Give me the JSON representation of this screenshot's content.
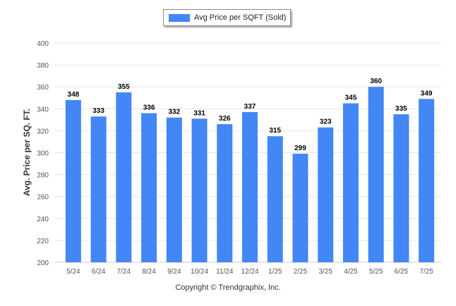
{
  "chart_data": {
    "type": "bar",
    "categories": [
      "5/24",
      "6/24",
      "7/24",
      "8/24",
      "9/24",
      "10/24",
      "11/24",
      "12/24",
      "1/25",
      "2/25",
      "3/25",
      "4/25",
      "5/25",
      "6/25",
      "7/25"
    ],
    "series": [
      {
        "name": "Avg Price per SQFT (Sold)",
        "values": [
          348,
          333,
          355,
          336,
          332,
          331,
          326,
          337,
          315,
          299,
          323,
          345,
          360,
          335,
          349
        ]
      }
    ],
    "ylabel": "Avg. Price per SQ. FT.",
    "xlabel": "",
    "ylim": [
      200,
      400
    ],
    "yticks": [
      200,
      220,
      240,
      260,
      280,
      300,
      320,
      340,
      360,
      380,
      400
    ],
    "grid": true,
    "legend": "top-center",
    "data_labels": true
  },
  "colors": {
    "bar": "#4287f5",
    "grid": "#e6e6e6",
    "axis_text": "#555555",
    "label_text": "#000000"
  },
  "footer": {
    "text": "Copyright © Trendgraphix, Inc."
  }
}
